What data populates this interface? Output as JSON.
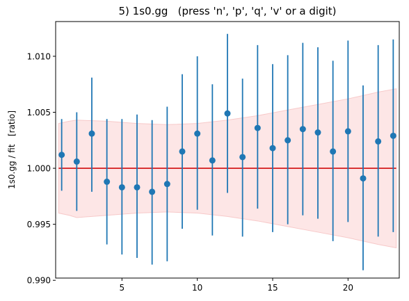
{
  "window": {
    "title": "5) 1s0.gg   (press 'n', 'p', 'q', 'v' or a digit)"
  },
  "chart_data": {
    "type": "scatter",
    "title": "5) 1s0.gg   (press 'n', 'p', 'q', 'v' or a digit)",
    "xlabel": "",
    "ylabel": "1s0.gg / fit   [ratio]",
    "xlim": [
      0.6,
      23.4
    ],
    "ylim": [
      0.9902,
      1.0131
    ],
    "xticks": [
      5,
      10,
      15,
      20
    ],
    "xtick_labels": [
      "5",
      "10",
      "15",
      "20"
    ],
    "yticks": [
      0.99,
      0.995,
      1.0,
      1.005,
      1.01
    ],
    "ytick_labels": [
      "0.990",
      "0.995",
      "1.000",
      "1.005",
      "1.010"
    ],
    "grid": false,
    "colors": {
      "points": "#1f77b4",
      "fit_line": "#d62728",
      "band_fill": "#fde6e6",
      "band_edge": "#f7c9c9"
    },
    "points": {
      "x": [
        1,
        2,
        3,
        4,
        5,
        6,
        7,
        8,
        9,
        10,
        11,
        12,
        13,
        14,
        15,
        16,
        17,
        18,
        19,
        20,
        21,
        22,
        23
      ],
      "y": [
        1.0012,
        1.0006,
        1.0031,
        0.9988,
        0.9983,
        0.9983,
        0.9979,
        0.9986,
        1.0015,
        1.0031,
        1.0007,
        1.0049,
        1.001,
        1.0036,
        1.0018,
        1.0025,
        1.0035,
        1.0032,
        1.0015,
        1.0033,
        0.9991,
        1.0024,
        1.0029
      ],
      "yerr_low": [
        0.998,
        0.9962,
        0.9979,
        0.9932,
        0.9923,
        0.992,
        0.9914,
        0.9917,
        0.9946,
        0.9963,
        0.994,
        0.9978,
        0.9939,
        0.9964,
        0.9943,
        0.995,
        0.9958,
        0.9955,
        0.9935,
        0.9952,
        0.9909,
        0.9939,
        0.9943
      ],
      "yerr_high": [
        1.0044,
        1.005,
        1.0081,
        1.0044,
        1.0044,
        1.0048,
        1.0043,
        1.0055,
        1.0084,
        1.01,
        1.0075,
        1.012,
        1.008,
        1.011,
        1.0093,
        1.0101,
        1.0112,
        1.0108,
        1.0096,
        1.0114,
        1.0074,
        1.011,
        1.0115
      ]
    },
    "fit_line": {
      "y": 1.0
    },
    "band": {
      "x": [
        0.8,
        1.5,
        2,
        4,
        6,
        8,
        10,
        12,
        14,
        16,
        18,
        20,
        22,
        23.2
      ],
      "upper": [
        1.004,
        1.0042,
        1.0043,
        1.0042,
        1.004,
        1.0039,
        1.004,
        1.0043,
        1.0047,
        1.0052,
        1.0057,
        1.0062,
        1.0068,
        1.0071
      ],
      "lower": [
        0.996,
        0.9958,
        0.9956,
        0.9958,
        0.996,
        0.9961,
        0.996,
        0.9957,
        0.9953,
        0.9948,
        0.9943,
        0.9938,
        0.9932,
        0.9929
      ]
    }
  }
}
